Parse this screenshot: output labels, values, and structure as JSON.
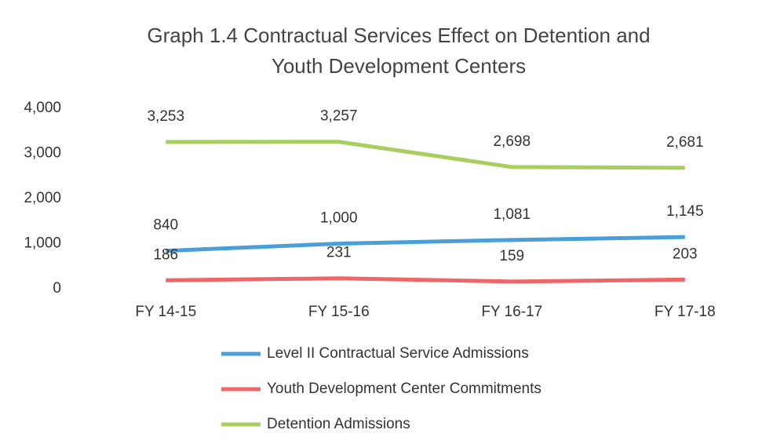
{
  "chart_data": {
    "type": "line",
    "title": [
      "Graph 1.4 Contractual Services Effect on Detention and",
      "Youth Development Centers"
    ],
    "categories": [
      "FY 14-15",
      "FY 15-16",
      "FY 16-17",
      "FY 17-18"
    ],
    "series": [
      {
        "name": "Level II Contractual Service Admissions",
        "color": "#4a9fd8",
        "values": [
          840,
          1000,
          1081,
          1145
        ],
        "value_labels": [
          "840",
          "1,000",
          "1,081",
          "1,145"
        ]
      },
      {
        "name": "Youth Development Center Commitments",
        "color": "#ef6669",
        "values": [
          186,
          231,
          159,
          203
        ],
        "value_labels": [
          "186",
          "231",
          "159",
          "203"
        ]
      },
      {
        "name": "Detention Admissions",
        "color": "#a8ce5d",
        "values": [
          3253,
          3257,
          2698,
          2681
        ],
        "value_labels": [
          "3,253",
          "3,257",
          "2,698",
          "2,681"
        ]
      }
    ],
    "ylim": [
      0,
      4000
    ],
    "yticks": [
      0,
      {
        "value": 1000,
        "label": "1,000"
      },
      {
        "value": 2000,
        "label": "2,000"
      },
      {
        "value": 3000,
        "label": "3,000"
      },
      {
        "value": 4000,
        "label": "4,000"
      }
    ],
    "grid": false,
    "legend": "bottom"
  }
}
